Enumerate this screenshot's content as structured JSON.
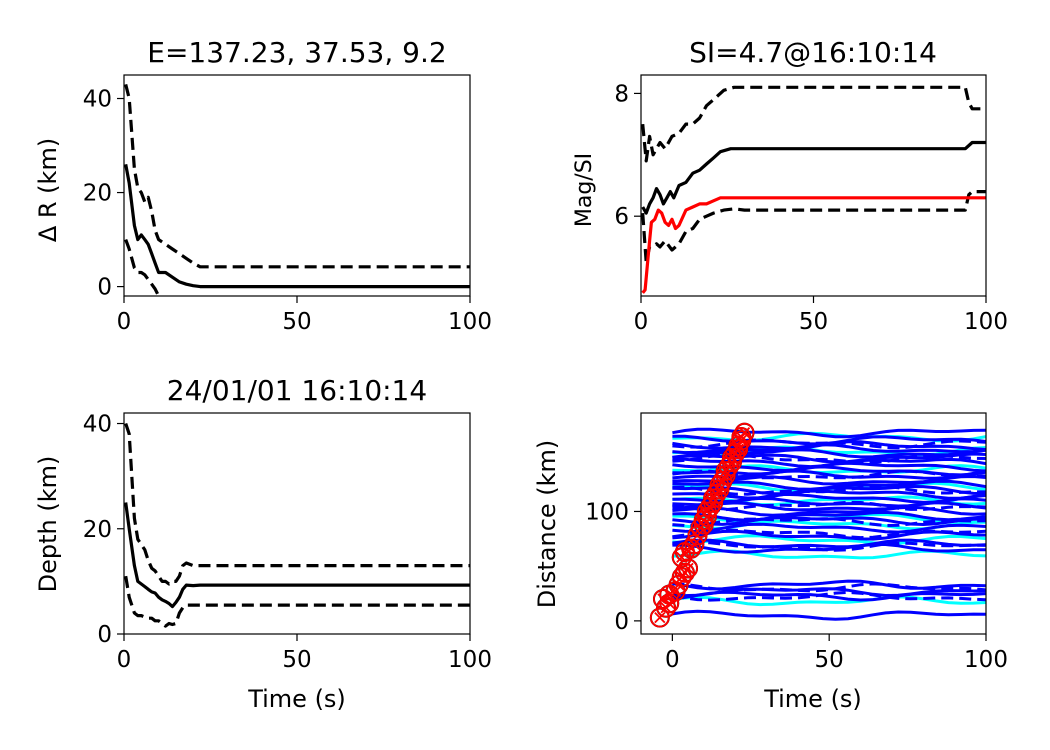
{
  "colors": {
    "black": "#000000",
    "red": "#ff0000",
    "blue": "#0000ff",
    "cyan": "#00ffff"
  },
  "chart_data": [
    {
      "type": "line",
      "title": "E=137.23, 37.53,  9.2",
      "xlabel": "",
      "ylabel": "Δ R (km)",
      "xlim": [
        0,
        100
      ],
      "ylim": [
        -2,
        45
      ],
      "xticks": [
        "0",
        "50",
        "100"
      ],
      "yticks": [
        "0",
        "20",
        "40"
      ],
      "grid": false,
      "series": [
        {
          "style": "solid",
          "color": "#000000",
          "x": [
            0.5,
            1.5,
            3,
            4,
            5,
            6,
            7,
            8,
            9,
            10,
            12,
            14,
            16,
            18,
            20,
            22,
            25,
            30,
            50,
            75,
            100
          ],
          "y": [
            26,
            22,
            13,
            10,
            11,
            10,
            9,
            7,
            5,
            3,
            3,
            2,
            1,
            0.5,
            0.2,
            0,
            0,
            0,
            0,
            0,
            0
          ]
        },
        {
          "style": "dashed",
          "color": "#000000",
          "x": [
            0.5,
            1.5,
            3,
            4,
            5,
            6,
            7,
            8,
            9,
            10,
            12,
            14,
            16,
            18,
            20,
            22,
            25,
            30,
            50,
            75,
            100
          ],
          "y": [
            43,
            40,
            25,
            21,
            20,
            18,
            19,
            16,
            12,
            10,
            9,
            8,
            7,
            6,
            5,
            4.2,
            4.2,
            4.2,
            4.2,
            4.2,
            4.2
          ]
        },
        {
          "style": "dashed",
          "color": "#000000",
          "x": [
            0.5,
            1.5,
            3,
            4,
            5,
            6,
            7,
            8,
            9,
            10
          ],
          "y": [
            10,
            8,
            4,
            3,
            3,
            2.5,
            1.5,
            0.5,
            -0.5,
            -2
          ]
        }
      ]
    },
    {
      "type": "line",
      "title": "SI=4.7@16:10:14",
      "xlabel": "",
      "ylabel": "Mag/SI",
      "xlim": [
        0,
        100
      ],
      "ylim": [
        4.7,
        8.3
      ],
      "xticks": [
        "0",
        "50",
        "100"
      ],
      "yticks": [
        "6",
        "8"
      ],
      "grid": false,
      "series": [
        {
          "style": "solid",
          "color": "#000000",
          "x": [
            0.5,
            1.5,
            2.5,
            3.5,
            4.5,
            5.5,
            6.5,
            7.5,
            8.5,
            9.5,
            11,
            13,
            15,
            17,
            19,
            21,
            23,
            26,
            30,
            50,
            75,
            94,
            96,
            100
          ],
          "y": [
            6.15,
            6.05,
            6.2,
            6.3,
            6.45,
            6.35,
            6.2,
            6.3,
            6.4,
            6.3,
            6.5,
            6.55,
            6.7,
            6.75,
            6.85,
            6.95,
            7.05,
            7.1,
            7.1,
            7.1,
            7.1,
            7.1,
            7.2,
            7.2
          ]
        },
        {
          "style": "dashed",
          "color": "#000000",
          "x": [
            0.5,
            1.5,
            2.5,
            3.5,
            4.5,
            5.5,
            7,
            9,
            11,
            13,
            15,
            17,
            19,
            21,
            24,
            27,
            30,
            50,
            75,
            94,
            95,
            96,
            100
          ],
          "y": [
            7.5,
            6.9,
            7.3,
            7.0,
            7.1,
            7.2,
            7.1,
            7.3,
            7.35,
            7.5,
            7.5,
            7.6,
            7.8,
            7.9,
            8.05,
            8.1,
            8.1,
            8.1,
            8.1,
            8.1,
            7.85,
            7.75,
            7.75
          ]
        },
        {
          "style": "dashed",
          "color": "#000000",
          "x": [
            0.5,
            1.5,
            2.5,
            3.5,
            4.5,
            5.5,
            7,
            9,
            11,
            13,
            15,
            17,
            19,
            21,
            24,
            27,
            30,
            50,
            75,
            94,
            95,
            96,
            100
          ],
          "y": [
            6.05,
            5.25,
            5.5,
            5.5,
            5.55,
            5.5,
            5.6,
            5.45,
            5.55,
            5.75,
            5.8,
            5.95,
            6.0,
            6.05,
            6.1,
            6.12,
            6.1,
            6.1,
            6.1,
            6.1,
            6.35,
            6.4,
            6.4
          ]
        },
        {
          "style": "solid",
          "color": "#ff0000",
          "x": [
            0.5,
            1.2,
            2,
            2.5,
            3,
            4,
            5,
            6,
            7,
            8,
            9,
            10,
            11,
            13,
            15,
            17,
            19,
            21,
            23,
            26,
            30,
            50,
            75,
            100
          ],
          "y": [
            4.75,
            4.8,
            5.3,
            5.6,
            5.9,
            5.95,
            6.1,
            6.05,
            5.9,
            5.85,
            5.95,
            5.8,
            5.85,
            6.1,
            6.15,
            6.2,
            6.2,
            6.25,
            6.3,
            6.3,
            6.3,
            6.3,
            6.3,
            6.3
          ]
        }
      ]
    },
    {
      "type": "line",
      "title": "24/01/01 16:10:14",
      "xlabel": "Time (s)",
      "ylabel": "Depth (km)",
      "xlim": [
        0,
        100
      ],
      "ylim": [
        0,
        42
      ],
      "xticks": [
        "0",
        "50",
        "100"
      ],
      "yticks": [
        "0",
        "20",
        "40"
      ],
      "grid": false,
      "series": [
        {
          "style": "solid",
          "color": "#000000",
          "x": [
            0.5,
            1.5,
            3,
            4,
            5,
            6,
            7,
            8,
            9,
            10,
            11,
            12,
            13,
            14,
            15,
            16,
            17,
            18,
            20,
            22,
            25,
            30,
            50,
            75,
            100
          ],
          "y": [
            25,
            20,
            13,
            10,
            9.5,
            9,
            8.5,
            8,
            7.8,
            7,
            6.5,
            6.2,
            5.8,
            5.2,
            6,
            7,
            8.5,
            9.3,
            9.2,
            9.3,
            9.3,
            9.3,
            9.3,
            9.3,
            9.3
          ]
        },
        {
          "style": "dashed",
          "color": "#000000",
          "x": [
            0.5,
            1.5,
            3,
            4,
            5,
            6,
            7,
            8,
            9,
            10,
            11,
            12,
            13,
            14,
            15,
            16,
            17,
            18,
            20,
            25,
            30,
            50,
            75,
            100
          ],
          "y": [
            40,
            38,
            22,
            18,
            17,
            16,
            14,
            12.5,
            12,
            11,
            10,
            10,
            9.5,
            10,
            10,
            11,
            13,
            13.5,
            13,
            13,
            13,
            13,
            13,
            13
          ]
        },
        {
          "style": "dashed",
          "color": "#000000",
          "x": [
            0.5,
            1.5,
            3,
            4,
            5,
            6,
            7,
            8,
            9,
            10,
            11,
            12,
            13,
            14,
            15,
            16,
            17,
            18,
            20,
            25,
            30,
            50,
            75,
            100
          ],
          "y": [
            11,
            7,
            4,
            3.5,
            3.5,
            3.2,
            3,
            3,
            2.5,
            2.5,
            2,
            1.5,
            2,
            1.8,
            2,
            4,
            5,
            5.5,
            5.5,
            5.5,
            5.5,
            5.5,
            5.5,
            5.5
          ]
        }
      ]
    },
    {
      "type": "scatter",
      "title": "",
      "xlabel": "Time (s)",
      "ylabel": "Distance (km)",
      "xlim": [
        -10,
        100
      ],
      "ylim": [
        -12,
        190
      ],
      "xticks": [
        "0",
        "50",
        "100"
      ],
      "yticks": [
        "0",
        "100"
      ],
      "grid": false,
      "station_distances_blue": [
        172,
        165,
        160,
        157,
        153,
        149,
        145,
        141,
        137,
        133,
        128,
        124,
        120,
        116,
        112,
        108,
        104,
        100,
        96,
        92,
        85,
        78,
        70,
        66,
        33,
        27,
        23,
        5
      ],
      "station_distances_blue_dashed": [
        162,
        148,
        133,
        119,
        105,
        91,
        80,
        68,
        30,
        22
      ],
      "station_distances_cyan": [
        168,
        155,
        138,
        122,
        110,
        95,
        88,
        74,
        60,
        18
      ],
      "picks": [
        {
          "t": -4,
          "d": 3
        },
        {
          "t": -2,
          "d": 12
        },
        {
          "t": -1,
          "d": 16
        },
        {
          "t": -3,
          "d": 20
        },
        {
          "t": -1,
          "d": 24
        },
        {
          "t": 1,
          "d": 27
        },
        {
          "t": 2,
          "d": 33
        },
        {
          "t": 3,
          "d": 40
        },
        {
          "t": 4,
          "d": 44
        },
        {
          "t": 5,
          "d": 48
        },
        {
          "t": 3,
          "d": 58
        },
        {
          "t": 4,
          "d": 63
        },
        {
          "t": 6,
          "d": 66
        },
        {
          "t": 7,
          "d": 70
        },
        {
          "t": 8,
          "d": 78
        },
        {
          "t": 9,
          "d": 85
        },
        {
          "t": 10,
          "d": 88
        },
        {
          "t": 10,
          "d": 92
        },
        {
          "t": 11,
          "d": 95
        },
        {
          "t": 11,
          "d": 100
        },
        {
          "t": 12,
          "d": 104
        },
        {
          "t": 13,
          "d": 108
        },
        {
          "t": 13,
          "d": 112
        },
        {
          "t": 14,
          "d": 116
        },
        {
          "t": 15,
          "d": 120
        },
        {
          "t": 15,
          "d": 124
        },
        {
          "t": 16,
          "d": 128
        },
        {
          "t": 17,
          "d": 133
        },
        {
          "t": 17,
          "d": 137
        },
        {
          "t": 18,
          "d": 141
        },
        {
          "t": 19,
          "d": 145
        },
        {
          "t": 19,
          "d": 149
        },
        {
          "t": 20,
          "d": 153
        },
        {
          "t": 21,
          "d": 157
        },
        {
          "t": 21,
          "d": 160
        },
        {
          "t": 22,
          "d": 165
        },
        {
          "t": 22,
          "d": 168
        },
        {
          "t": 23,
          "d": 172
        }
      ]
    }
  ]
}
